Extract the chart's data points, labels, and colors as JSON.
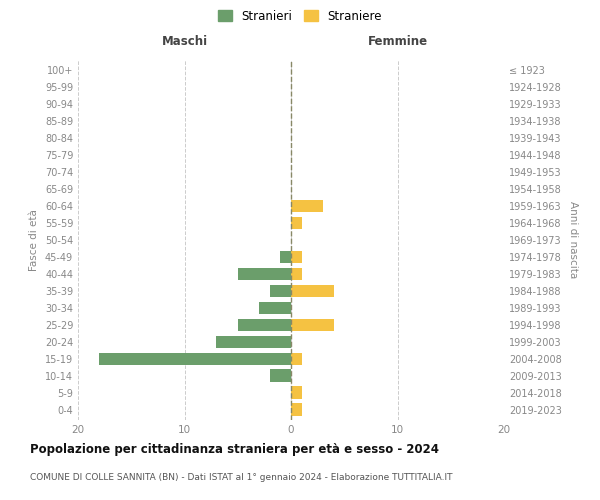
{
  "age_groups": [
    "0-4",
    "5-9",
    "10-14",
    "15-19",
    "20-24",
    "25-29",
    "30-34",
    "35-39",
    "40-44",
    "45-49",
    "50-54",
    "55-59",
    "60-64",
    "65-69",
    "70-74",
    "75-79",
    "80-84",
    "85-89",
    "90-94",
    "95-99",
    "100+"
  ],
  "birth_years": [
    "2019-2023",
    "2014-2018",
    "2009-2013",
    "2004-2008",
    "1999-2003",
    "1994-1998",
    "1989-1993",
    "1984-1988",
    "1979-1983",
    "1974-1978",
    "1969-1973",
    "1964-1968",
    "1959-1963",
    "1954-1958",
    "1949-1953",
    "1944-1948",
    "1939-1943",
    "1934-1938",
    "1929-1933",
    "1924-1928",
    "≤ 1923"
  ],
  "males": [
    0,
    0,
    2,
    18,
    7,
    5,
    3,
    2,
    5,
    1,
    0,
    0,
    0,
    0,
    0,
    0,
    0,
    0,
    0,
    0,
    0
  ],
  "females": [
    1,
    1,
    0,
    1,
    0,
    4,
    0,
    4,
    1,
    1,
    0,
    1,
    3,
    0,
    0,
    0,
    0,
    0,
    0,
    0,
    0
  ],
  "male_color": "#6b9e6b",
  "female_color": "#f5c242",
  "background_color": "#ffffff",
  "grid_color": "#cccccc",
  "title": "Popolazione per cittadinanza straniera per età e sesso - 2024",
  "subtitle": "COMUNE DI COLLE SANNITA (BN) - Dati ISTAT al 1° gennaio 2024 - Elaborazione TUTTITALIA.IT",
  "left_label": "Maschi",
  "right_label": "Femmine",
  "left_axis_label": "Fasce di età",
  "right_axis_label": "Anni di nascita",
  "legend_male": "Stranieri",
  "legend_female": "Straniere",
  "xlim": 20,
  "center_line_color": "#888866"
}
